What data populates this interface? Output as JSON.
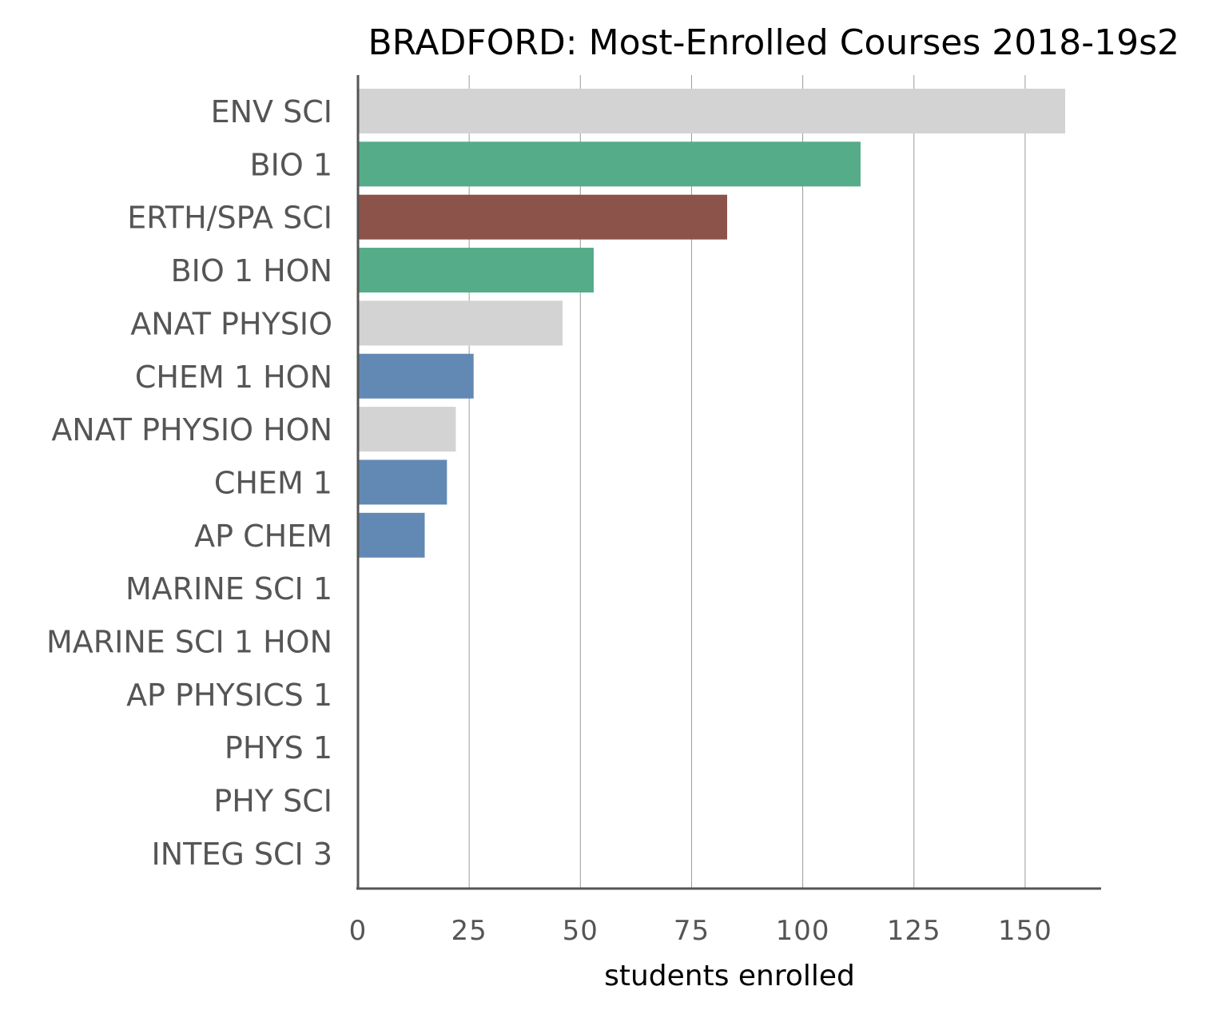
{
  "chart_data": {
    "type": "bar",
    "orientation": "horizontal",
    "title": "BRADFORD: Most-Enrolled Courses 2018-19s2",
    "xlabel": "students enrolled",
    "ylabel": "",
    "xlim": [
      0,
      166
    ],
    "xticks": [
      0,
      25,
      50,
      75,
      100,
      125,
      150
    ],
    "grid": "vertical",
    "legend": "none",
    "categories": [
      "ENV SCI",
      "BIO 1",
      "ERTH/SPA SCI",
      "BIO 1 HON",
      "ANAT PHYSIO",
      "CHEM 1 HON",
      "ANAT PHYSIO HON",
      "CHEM 1",
      "AP CHEM",
      "MARINE SCI 1",
      "MARINE SCI 1 HON",
      "AP PHYSICS 1",
      "PHYS 1",
      "PHY SCI",
      "INTEG SCI 3"
    ],
    "values": [
      159,
      113,
      83,
      53,
      46,
      26,
      22,
      20,
      15,
      0,
      0,
      0,
      0,
      0,
      0
    ],
    "colors": [
      "#d3d3d3",
      "#55ac88",
      "#8b5349",
      "#55ac88",
      "#d3d3d3",
      "#6289b4",
      "#d3d3d3",
      "#6289b4",
      "#6289b4",
      "#d3d3d3",
      "#d3d3d3",
      "#d3d3d3",
      "#d3d3d3",
      "#d3d3d3",
      "#d3d3d3"
    ]
  }
}
